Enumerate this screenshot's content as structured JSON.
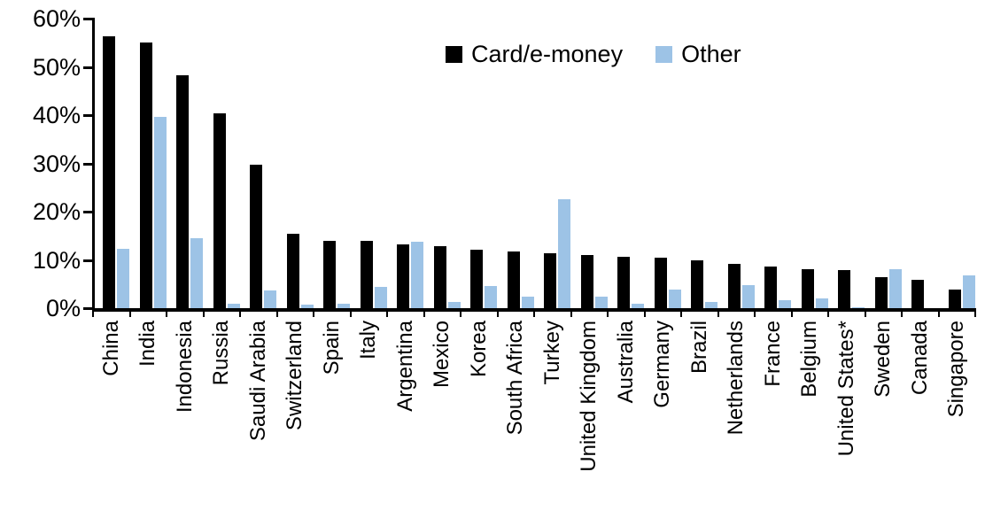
{
  "chart_data": {
    "type": "bar",
    "title": "",
    "xlabel": "",
    "ylabel": "",
    "categories": [
      "China",
      "India",
      "Indonesia",
      "Russia",
      "Saudi Arabia",
      "Switzerland",
      "Spain",
      "Italy",
      "Argentina",
      "Mexico",
      "Korea",
      "South Africa",
      "Turkey",
      "United Kingdom",
      "Australia",
      "Germany",
      "Brazil",
      "Netherlands",
      "France",
      "Belgium",
      "United States*",
      "Sweden",
      "Canada",
      "Singapore"
    ],
    "series": [
      {
        "name": "Card/e-money",
        "color": "#000000",
        "values": [
          56.3,
          55.0,
          48.3,
          40.4,
          29.8,
          15.5,
          14.0,
          13.9,
          13.3,
          12.8,
          12.2,
          11.7,
          11.4,
          11.0,
          10.7,
          10.4,
          9.9,
          9.2,
          8.6,
          8.0,
          7.8,
          6.5,
          5.9,
          3.8
        ]
      },
      {
        "name": "Other",
        "color": "#9DC3E6",
        "values": [
          12.3,
          39.7,
          14.5,
          1.0,
          3.7,
          0.8,
          1.0,
          4.4,
          13.8,
          1.3,
          4.5,
          2.3,
          22.6,
          2.4,
          1.0,
          3.9,
          1.2,
          4.8,
          1.6,
          2.0,
          0.2,
          8.0,
          0.0,
          6.7
        ]
      }
    ],
    "ylim": [
      0,
      60
    ],
    "yticks": [
      0,
      10,
      20,
      30,
      40,
      50,
      60
    ],
    "ytick_suffix": "%",
    "grid": false,
    "legend_position": "top-center",
    "x_labels_rotated_degrees": 90
  },
  "colors": {
    "card": "#000000",
    "other": "#9DC3E6",
    "axis": "#000000",
    "background": "#FFFFFF"
  }
}
